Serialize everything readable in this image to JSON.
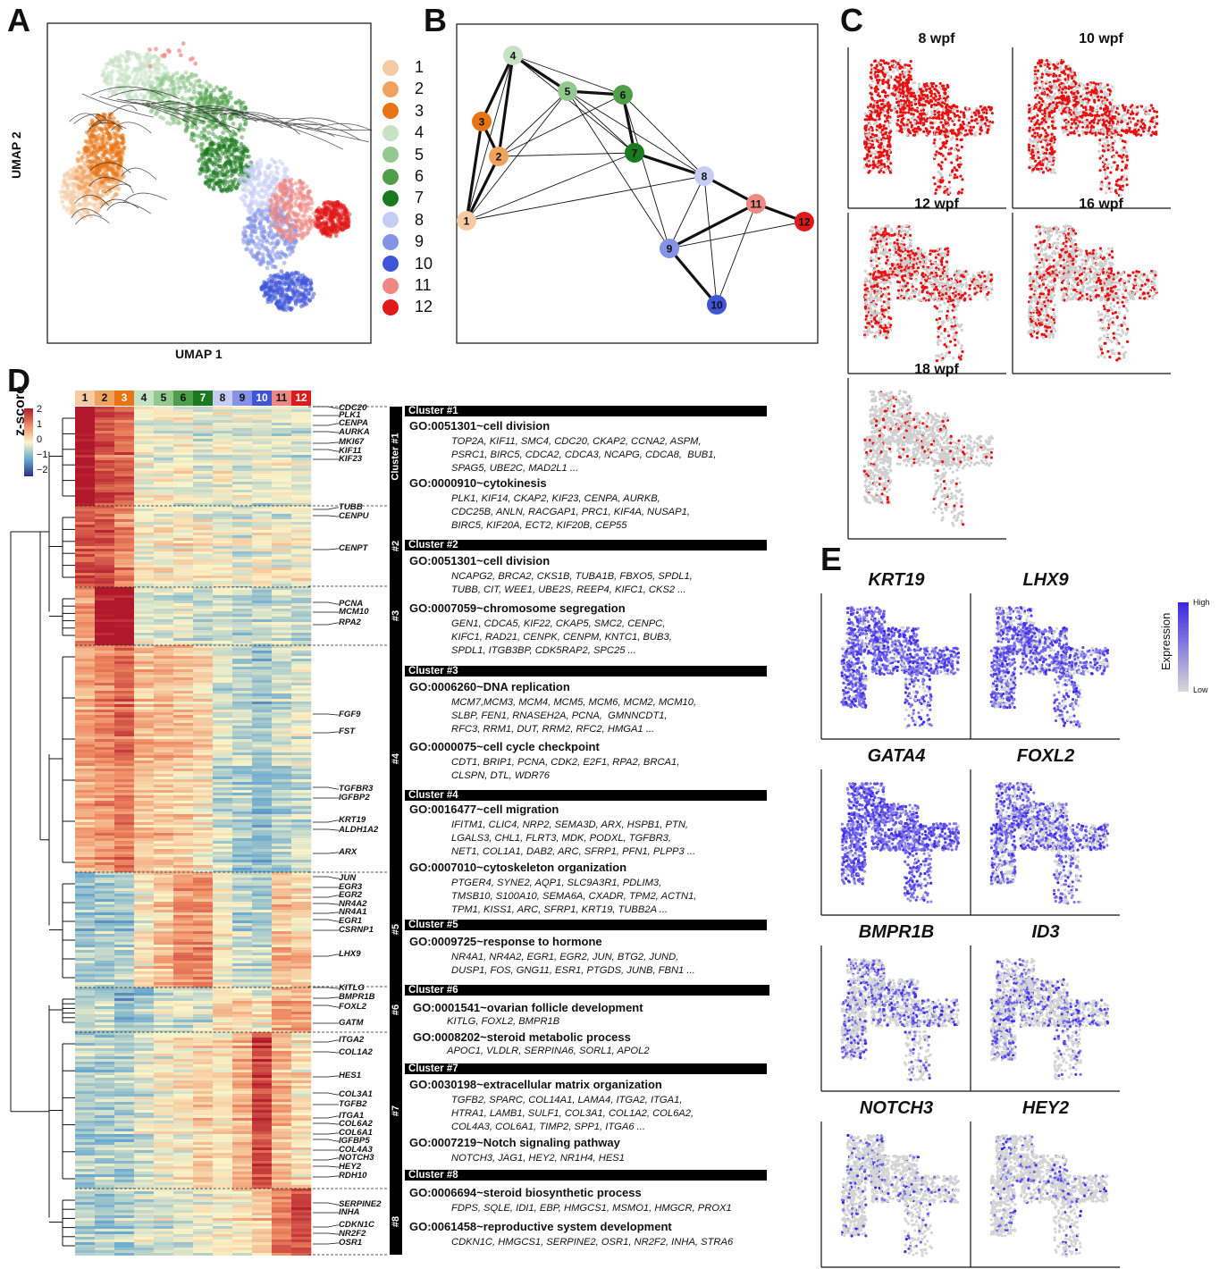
{
  "panels": {
    "A": "A",
    "B": "B",
    "C": "C",
    "D": "D",
    "E": "E"
  },
  "umap": {
    "xlabel": "UMAP 1",
    "ylabel": "UMAP 2"
  },
  "legend": [
    {
      "label": "1",
      "color": "#f6cba3"
    },
    {
      "label": "2",
      "color": "#f0a25c"
    },
    {
      "label": "3",
      "color": "#e87415"
    },
    {
      "label": "4",
      "color": "#c5e2c3"
    },
    {
      "label": "5",
      "color": "#93c98e"
    },
    {
      "label": "6",
      "color": "#4f9e4a"
    },
    {
      "label": "7",
      "color": "#1b7a1f"
    },
    {
      "label": "8",
      "color": "#c6cdf4"
    },
    {
      "label": "9",
      "color": "#8493e6"
    },
    {
      "label": "10",
      "color": "#3e55d8"
    },
    {
      "label": "11",
      "color": "#ef8782"
    },
    {
      "label": "12",
      "color": "#e01a1a"
    }
  ],
  "graph": {
    "nodes": [
      "1",
      "2",
      "3",
      "4",
      "5",
      "6",
      "7",
      "8",
      "9",
      "10",
      "11",
      "12"
    ],
    "edges_thick": [
      [
        "1",
        "2"
      ],
      [
        "1",
        "3"
      ],
      [
        "2",
        "3"
      ],
      [
        "3",
        "4"
      ],
      [
        "4",
        "2"
      ],
      [
        "4",
        "5"
      ],
      [
        "5",
        "6"
      ],
      [
        "6",
        "7"
      ],
      [
        "7",
        "8"
      ],
      [
        "8",
        "11"
      ],
      [
        "11",
        "12"
      ],
      [
        "9",
        "10"
      ],
      [
        "9",
        "11"
      ]
    ],
    "edges_thin": [
      [
        "1",
        "4"
      ],
      [
        "1",
        "5"
      ],
      [
        "1",
        "7"
      ],
      [
        "1",
        "8"
      ],
      [
        "2",
        "5"
      ],
      [
        "2",
        "7"
      ],
      [
        "4",
        "6"
      ],
      [
        "5",
        "7"
      ],
      [
        "5",
        "8"
      ],
      [
        "6",
        "8"
      ],
      [
        "5",
        "9"
      ],
      [
        "6",
        "9"
      ],
      [
        "8",
        "9"
      ],
      [
        "8",
        "10"
      ],
      [
        "9",
        "12"
      ],
      [
        "10",
        "11"
      ],
      [
        "4",
        "7"
      ],
      [
        "2",
        "6"
      ]
    ]
  },
  "timepoints": [
    "8 wpf",
    "10 wpf",
    "12 wpf",
    "16 wpf",
    "18 wpf"
  ],
  "genes_E": [
    "KRT19",
    "LHX9",
    "GATA4",
    "FOXL2",
    "BMPR1B",
    "ID3",
    "NOTCH3",
    "HEY2"
  ],
  "expression_legend": {
    "title": "Expression",
    "high": "High",
    "low": "Low"
  },
  "zscore": {
    "title": "z-score",
    "ticks": [
      "2",
      "1",
      "0",
      "−1",
      "−2"
    ]
  },
  "heatmap_columns": [
    "1",
    "2",
    "3",
    "4",
    "5",
    "6",
    "7",
    "8",
    "9",
    "10",
    "11",
    "12"
  ],
  "heatmap_clusters": [
    "Cluster #1",
    "#2",
    "#3",
    "#4",
    "#5",
    "#6",
    "#7",
    "#8"
  ],
  "row_genes": [
    "CDC20",
    "PLK1",
    "CENPA",
    "AURKA",
    "MKI67",
    "KIF11",
    "KIF23",
    "TUBB",
    "CENPU",
    "CENPT",
    "PCNA",
    "MCM10",
    "RPA2",
    "FGF9",
    "FST",
    "TGFBR3",
    "IGFBP2",
    "KRT19",
    "ALDH1A2",
    "ARX",
    "JUN",
    "EGR3",
    "EGR2",
    "NR4A2",
    "NR4A1",
    "EGR1",
    "CSRNP1",
    "LHX9",
    "KITLG",
    "BMPR1B",
    "FOXL2",
    "GATM",
    "ITGA2",
    "COL1A2",
    "HES1",
    "COL3A1",
    "TGFB2",
    "ITGA1",
    "COL6A2",
    "COL6A1",
    "IGFBP5",
    "COL4A3",
    "NOTCH3",
    "HEY2",
    "RDH10",
    "SERPINE2",
    "INHA",
    "CDKN1C",
    "NR2F2",
    "OSR1"
  ],
  "go": {
    "c1_bar": "Cluster #1",
    "c1_t1": "GO:0051301~cell division",
    "c1_g1": "TOP2A, KIF11, SMC4, CDC20, CKAP2, CCNA2, ASPM,\nPSRC1, BIRC5, CDCA2, CDCA3, NCAPG, CDCA8,  BUB1,\nSPAG5, UBE2C, MAD2L1 ...",
    "c1_t2": "GO:0000910~cytokinesis",
    "c1_g2": "PLK1, KIF14, CKAP2, KIF23, CENPA, AURKB,\nCDC25B, ANLN, RACGAP1, PRC1, KIF4A, NUSAP1,\nBIRC5, KIF20A, ECT2, KIF20B, CEP55",
    "c2_bar": "Cluster #2",
    "c2_t1": "GO:0051301~cell division",
    "c2_g1": "NCAPG2, BRCA2, CKS1B, TUBA1B, FBXO5, SPDL1,\nTUBB, CIT, WEE1, UBE2S, REEP4, KIFC1, CKS2 ...",
    "c2_t2": "GO:0007059~chromosome segregation",
    "c2_g2": "GEN1, CDCA5, KIF22, CKAP5, SMC2, CENPC,\nKIFC1, RAD21, CENPK, CENPM, KNTC1, BUB3,\nSPDL1, ITGB3BP, CDK5RAP2, SPC25 ...",
    "c3_bar": "Cluster #3",
    "c3_t1": "GO:0006260~DNA replication",
    "c3_g1": "MCM7,MCM3, MCM4, MCM5, MCM6, MCM2, MCM10,\nSLBP, FEN1, RNASEH2A, PCNA,  GMNNCDT1,\nRFC3, RRM1, DUT, RRM2, RFC2, HMGA1 ...",
    "c3_t2": "GO:0000075~cell cycle checkpoint",
    "c3_g2": "CDT1, BRIP1, PCNA, CDK2, E2F1, RPA2, BRCA1,\nCLSPN, DTL, WDR76",
    "c4_bar": "Cluster #4",
    "c4_t1": "GO:0016477~cell migration",
    "c4_g1": "IFITM1, CLIC4, NRP2, SEMA3D, ARX, HSPB1, PTN,\nLGALS3, CHL1, FLRT3, MDK, PODXL, TGFBR3,\nNET1, COL1A1, DAB2, ARC, SFRP1, PFN1, PLPP3 ...",
    "c4_t2": "GO:0007010~cytoskeleton organization",
    "c4_g2": "PTGER4, SYNE2, AQP1, SLC9A3R1, PDLIM3,\nTMSB10, S100A10, SEMA6A, CXADR, TPM2, ACTN1,\nTPM1, KISS1, ARC, SFRP1, KRT19, TUBB2A ...",
    "c5_bar": "Cluster #5",
    "c5_t1": "GO:0009725~response to hormone",
    "c5_g1": "NR4A1, NR4A2, EGR1, EGR2, JUN, BTG2, JUND,\nDUSP1, FOS, GNG11, ESR1, PTGDS, JUNB, FBN1 ...",
    "c6_bar": "Cluster #6",
    "c6_t1": "GO:0001541~ovarian follicle development",
    "c6_g1": "KITLG, FOXL2, BMPR1B",
    "c6_t2": "GO:0008202~steroid metabolic process",
    "c6_g2": "APOC1, VLDLR, SERPINA6, SORL1, APOL2",
    "c7_bar": "Cluster #7",
    "c7_t1": "GO:0030198~extracellular matrix organization",
    "c7_g1": "TGFB2, SPARC, COL14A1, LAMA4, ITGA2, ITGA1,\nHTRA1, LAMB1, SULF1, COL3A1, COL1A2, COL6A2,\nCOL4A3, COL6A1, TIMP2, SPP1, ITGA6 ...",
    "c7_t2": "GO:0007219~Notch signaling pathway",
    "c7_g2": "NOTCH3, JAG1, HEY2, NR1H4, HES1",
    "c8_bar": "Cluster #8",
    "c8_t1": "GO:0006694~steroid biosynthetic process",
    "c8_g1": "FDPS, SQLE, IDI1, EBP, HMGCS1, MSMO1, HMGCR, PROX1",
    "c8_t2": "GO:0061458~reproductive system development",
    "c8_g2": "CDKN1C, HMGCS1, SERPINE2, OSR1, NR2F2, INHA, STRA6"
  }
}
